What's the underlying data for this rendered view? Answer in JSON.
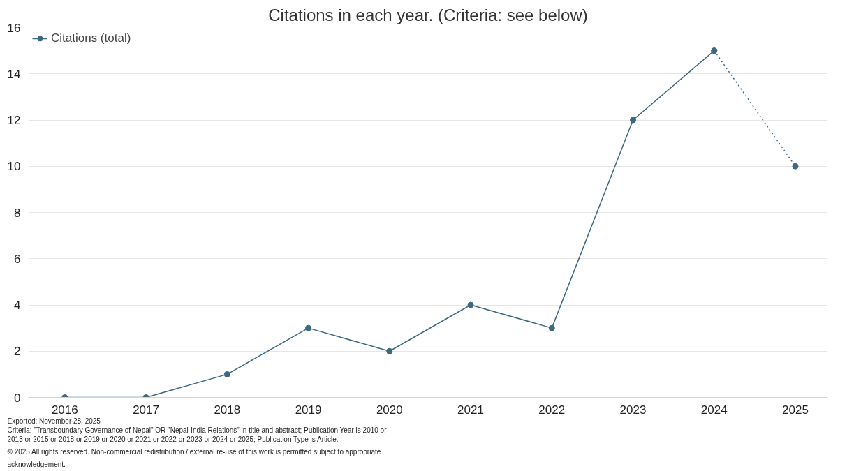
{
  "chart_data": {
    "type": "line",
    "title": "Citations in each year. (Criteria: see below)",
    "xlim": [
      2015.55,
      2025.4
    ],
    "xticks": [
      2016,
      2017,
      2018,
      2019,
      2020,
      2021,
      2022,
      2023,
      2024,
      2025
    ],
    "ylim": [
      0,
      16
    ],
    "yticks": [
      0,
      2,
      4,
      6,
      8,
      10,
      12,
      14,
      16
    ],
    "series": [
      {
        "name": "Citations (total)",
        "color": "#3d6882",
        "x": [
          2016,
          2017,
          2018,
          2019,
          2020,
          2021,
          2022,
          2023,
          2024
        ],
        "values": [
          0,
          0,
          1,
          3,
          2,
          4,
          3,
          12,
          15
        ],
        "line_style": "solid"
      },
      {
        "color": "#3d6882",
        "x": [
          2024,
          2025
        ],
        "values": [
          15,
          10
        ],
        "line_style": "dotted"
      }
    ],
    "marker": "circle",
    "grid": "y",
    "legend": "top left",
    "annotations": [
      "Exported: November 28, 2025",
      "Criteria: \"Transboundary Governance of Nepal\" OR \"Nepal-India Relations\" in title and abstract; Publication Year is 2010 or 2013 or 2015 or 2018 or 2019 or 2020 or 2021 or 2022 or 2023 or 2024 or 2025; Publication Type is Article.",
      "© 2025 All rights reserved. Non-commercial redistribution / external re-use of this work is permitted subject to appropriate acknowledgement."
    ]
  }
}
